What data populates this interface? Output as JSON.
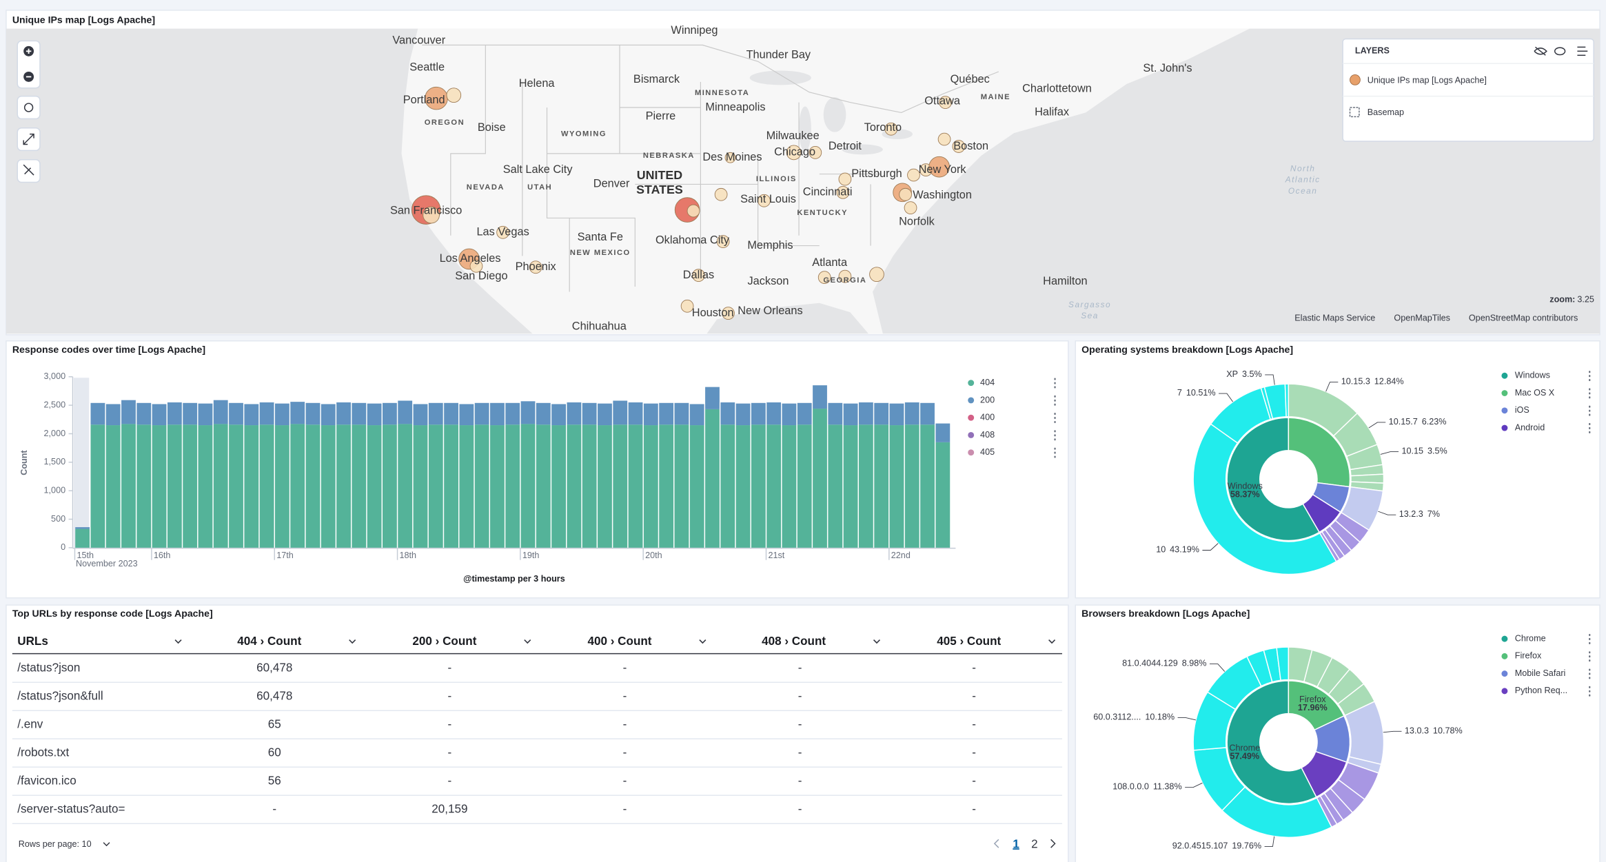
{
  "map": {
    "title": "Unique IPs map [Logs Apache]",
    "labels": [
      "Winnipeg",
      "Thunder Bay",
      "Vancouver",
      "Seattle",
      "Portland",
      "OREGON",
      "Boise",
      "Helena",
      "WYOMING",
      "Bismarck",
      "MINNESOTA",
      "Minneapolis",
      "Pierre",
      "NEBRASKA",
      "Des Moines",
      "ILLINOIS",
      "Milwaukee",
      "Chicago",
      "Detroit",
      "Toronto",
      "Ottawa",
      "Québec",
      "MAINE",
      "St. John's",
      "Charlottetown",
      "Halifax",
      "Boston",
      "New York",
      "Pittsburgh",
      "Washington",
      "Norfolk",
      "Cincinnati",
      "KENTUCKY",
      "Saint Louis",
      "Salt Lake City",
      "NEVADA",
      "UTAH",
      "Denver",
      "UNITED",
      "STATES",
      "San Francisco",
      "Las Vegas",
      "Santa Fe",
      "NEW MEXICO",
      "Oklahoma City",
      "Memphis",
      "Los Angeles",
      "San Diego",
      "Phoenix",
      "Dallas",
      "Jackson",
      "Atlanta",
      "GEORGIA",
      "Hamilton",
      "Houston",
      "New Orleans",
      "Chihuahua",
      "North",
      "Atlantic",
      "Ocean",
      "Sargasso",
      "Sea"
    ],
    "layers_title": "LAYERS",
    "layers": [
      "Unique IPs map [Logs Apache]",
      "Basemap"
    ],
    "zoom_label": "zoom:",
    "zoom": 3.25,
    "attribution": [
      "Elastic Maps Service",
      "OpenMapTiles",
      "OpenStreetMap contributors"
    ]
  },
  "chart_data": [
    {
      "type": "bar",
      "stacked": true,
      "title": "Response codes over time [Logs Apache]",
      "y_label": "Count",
      "x_label": "@timestamp per 3 hours",
      "x_sublabel": "November 2023",
      "categories": [
        null,
        null,
        null,
        null,
        null,
        null,
        null,
        null,
        null,
        null,
        null,
        null,
        null,
        null,
        null,
        null,
        null,
        null,
        null,
        null,
        null,
        null,
        null,
        null,
        null,
        null,
        null,
        null,
        null,
        null,
        null,
        null,
        null,
        null,
        null,
        null,
        null,
        null,
        null,
        null,
        null,
        null,
        null,
        null,
        null,
        null,
        null,
        null,
        null,
        null,
        null,
        null,
        null,
        null,
        null,
        null,
        null
      ],
      "xticks": [
        {
          "value": 0,
          "label": "15th"
        },
        {
          "value": 5,
          "label": "16th"
        },
        {
          "value": 13,
          "label": "17th"
        },
        {
          "value": 21,
          "label": "18th"
        },
        {
          "value": 29,
          "label": "19th"
        },
        {
          "value": 37,
          "label": "20th"
        },
        {
          "value": 45,
          "label": "21st"
        },
        {
          "value": 53,
          "label": "22nd"
        }
      ],
      "ylim": [
        0,
        3000
      ],
      "yticks": [
        0,
        500,
        {
          "value": 1000,
          "label": "1,000"
        },
        {
          "value": 1500,
          "label": "1,500"
        },
        {
          "value": 2000,
          "label": "2,000"
        },
        {
          "value": 2500,
          "label": "2,500"
        },
        {
          "value": 3000,
          "label": "3,000"
        }
      ],
      "series": [
        {
          "name": "404",
          "color": "#54b399",
          "values": [
            330,
            2160,
            2150,
            2170,
            2160,
            2150,
            2160,
            2160,
            2150,
            2170,
            2160,
            2150,
            2160,
            2150,
            2170,
            2160,
            2150,
            2160,
            2160,
            2150,
            2160,
            2170,
            2150,
            2160,
            2160,
            2150,
            2160,
            2150,
            2160,
            2170,
            2160,
            2150,
            2160,
            2160,
            2150,
            2160,
            2160,
            2150,
            2160,
            2160,
            2150,
            2430,
            2160,
            2150,
            2160,
            2160,
            2150,
            2160,
            2440,
            2160,
            2150,
            2160,
            2160,
            2150,
            2160,
            2160,
            1850
          ]
        },
        {
          "name": "200",
          "color": "#6092c0",
          "values": [
            30,
            380,
            370,
            420,
            380,
            370,
            390,
            380,
            380,
            420,
            380,
            370,
            390,
            380,
            390,
            380,
            370,
            390,
            380,
            380,
            380,
            410,
            370,
            380,
            380,
            370,
            380,
            390,
            380,
            400,
            380,
            370,
            390,
            380,
            380,
            420,
            390,
            380,
            380,
            380,
            370,
            390,
            390,
            380,
            380,
            390,
            380,
            380,
            410,
            380,
            380,
            390,
            380,
            380,
            390,
            380,
            330
          ]
        },
        {
          "name": "400",
          "color": "#d36086"
        },
        {
          "name": "408",
          "color": "#9170b8"
        },
        {
          "name": "405",
          "color": "#ca8eae"
        }
      ]
    },
    {
      "type": "sunburst",
      "title": "Operating systems breakdown [Logs Apache]",
      "slices": [
        {
          "name": "Windows",
          "value": 58.37,
          "value_label": "58.37%",
          "color": "#1ea593",
          "outer_color": "#22ecec",
          "children": [
            {
              "name": "10",
              "value": 43.19,
              "value_label": "43.19%"
            },
            {
              "name": "7",
              "value": 10.51,
              "value_label": "10.51%"
            },
            {
              "name": null,
              "value": 0.6
            },
            {
              "name": "XP",
              "value": 3.5,
              "value_label": "3.5%"
            },
            {
              "name": null,
              "value": 0.57
            }
          ]
        },
        {
          "name": "Mac OS X",
          "value": 27,
          "color": "#54c07a",
          "outer_color": "#a9dcb6",
          "children": [
            {
              "name": "10.15.3",
              "value": 12.84,
              "value_label": "12.84%"
            },
            {
              "name": "10.15.7",
              "value": 6.23,
              "value_label": "6.23%"
            },
            {
              "name": "10.15",
              "value": 3.5,
              "value_label": "3.5%"
            },
            {
              "name": null,
              "value": 1.6
            },
            {
              "name": null,
              "value": 1.5
            },
            {
              "name": null,
              "value": 1.33
            }
          ]
        },
        {
          "name": "iOS",
          "value": 7,
          "color": "#6b83d8",
          "outer_color": "#c3cbef",
          "children": [
            {
              "name": "13.2.3",
              "value": 7,
              "value_label": "7%"
            }
          ]
        },
        {
          "name": "Android",
          "value": 7.63,
          "color": "#5f3bbf",
          "outer_color": "#a897e3",
          "children": [
            {
              "name": null,
              "value": 2.5
            },
            {
              "name": null,
              "value": 2
            },
            {
              "name": null,
              "value": 1.5
            },
            {
              "name": null,
              "value": 1
            },
            {
              "name": null,
              "value": 0.63
            }
          ]
        }
      ]
    },
    {
      "type": "sunburst",
      "title": "Browsers breakdown [Logs Apache]",
      "slices": [
        {
          "name": "Chrome",
          "value": 57.49,
          "value_label": "57.49%",
          "color": "#1ea593",
          "outer_color": "#22ecec",
          "children": [
            {
              "name": "92.0.4515.107",
              "value": 19.76,
              "value_label": "19.76%"
            },
            {
              "name": "108.0.0.0",
              "value": 11.38,
              "value_label": "11.38%"
            },
            {
              "name": "60.0.3112....",
              "value": 10.18,
              "value_label": "10.18%"
            },
            {
              "name": "81.0.4044.129",
              "value": 8.98,
              "value_label": "8.98%"
            },
            {
              "name": null,
              "value": 3
            },
            {
              "name": null,
              "value": 2.2
            },
            {
              "name": null,
              "value": 1.99
            }
          ]
        },
        {
          "name": "Firefox",
          "value": 17.96,
          "value_label": "17.96%",
          "color": "#54c07a",
          "outer_color": "#a9dcb6",
          "children": [
            {
              "name": null,
              "value": 4
            },
            {
              "name": null,
              "value": 3.6
            },
            {
              "name": null,
              "value": 3.5
            },
            {
              "name": null,
              "value": 3.4
            },
            {
              "name": null,
              "value": 3.46
            }
          ]
        },
        {
          "name": "Mobile Safari",
          "value": 12.3,
          "color": "#6b83d8",
          "outer_color": "#c3cbef",
          "children": [
            {
              "name": "13.0.3",
              "value": 10.78,
              "value_label": "10.78%"
            },
            {
              "name": null,
              "value": 1.52
            }
          ]
        },
        {
          "name": "Python Req...",
          "value": 12.25,
          "color": "#6a3fc0",
          "outer_color": "#a897e3",
          "children": [
            {
              "name": null,
              "value": 5
            },
            {
              "name": null,
              "value": 3
            },
            {
              "name": null,
              "value": 2
            },
            {
              "name": null,
              "value": 1.25
            },
            {
              "name": null,
              "value": 1
            }
          ]
        }
      ]
    }
  ],
  "table": {
    "title": "Top URLs by response code [Logs Apache]",
    "columns": [
      "URLs",
      "404 › Count",
      "200 › Count",
      "400 › Count",
      "408 › Count",
      "405 › Count"
    ],
    "rows": [
      [
        "/status?json",
        "60,478",
        "-",
        "-",
        "-",
        "-"
      ],
      [
        "/status?json&full",
        "60,478",
        "-",
        "-",
        "-",
        "-"
      ],
      [
        "/.env",
        "65",
        "-",
        "-",
        "-",
        "-"
      ],
      [
        "/robots.txt",
        "60",
        "-",
        "-",
        "-",
        "-"
      ],
      [
        "/favicon.ico",
        "56",
        "-",
        "-",
        "-",
        "-"
      ],
      [
        "/server-status?auto=",
        "-",
        "20,159",
        "-",
        "-",
        "-"
      ]
    ],
    "rows_per_page": "Rows per page: 10",
    "pages": [
      1,
      2
    ]
  }
}
